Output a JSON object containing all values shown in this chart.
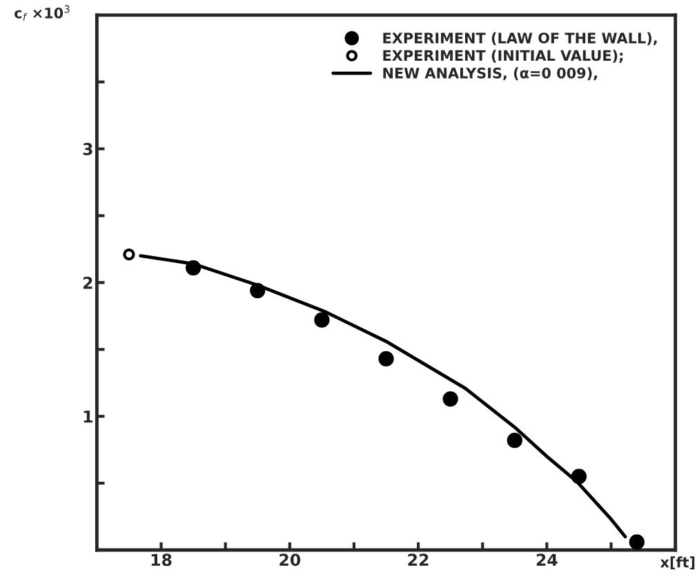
{
  "chart_data": {
    "type": "scatter",
    "xlabel": "x[ft]",
    "ylabel": "c$_{f}$ ×10$^{3}$",
    "xlim": [
      17,
      26
    ],
    "ylim": [
      0,
      4
    ],
    "xticks": [
      {
        "value": 18,
        "label": "18"
      },
      {
        "value": 19,
        "label": null
      },
      {
        "value": 20,
        "label": "20"
      },
      {
        "value": 21,
        "label": null
      },
      {
        "value": 22,
        "label": "22"
      },
      {
        "value": 23,
        "label": null
      },
      {
        "value": 24,
        "label": "24"
      },
      {
        "value": 25,
        "label": null
      }
    ],
    "yticks": [
      {
        "value": 0.5,
        "label": null
      },
      {
        "value": 1,
        "label": "1"
      },
      {
        "value": 1.5,
        "label": null
      },
      {
        "value": 2,
        "label": "2"
      },
      {
        "value": 2.5,
        "label": null
      },
      {
        "value": 3,
        "label": "3"
      },
      {
        "value": 3.5,
        "label": null
      }
    ],
    "legend": "top right",
    "grid": false,
    "series": [
      {
        "name": "EXPERIMENT (LAW OF THE WALL),",
        "marker": "circle",
        "color": "#000000",
        "x": [
          18.5,
          19.5,
          20.5,
          21.5,
          22.5,
          23.5,
          24.5,
          25.4
        ],
        "values": [
          2.11,
          1.94,
          1.72,
          1.43,
          1.13,
          0.82,
          0.55,
          0.06
        ]
      },
      {
        "name": "EXPERIMENT (INITIAL VALUE);",
        "marker": "circle",
        "color": "#ffffff",
        "x": [
          17.5
        ],
        "values": [
          2.21
        ]
      },
      {
        "name": "NEW ANALYSIS, (α=0 009),",
        "type": "line",
        "line_style": "solid",
        "color": "#000000",
        "x": [
          17.68,
          18.5,
          19.5,
          20.56,
          21.5,
          22.73,
          23.52,
          24.0,
          24.47,
          25.0,
          25.22
        ],
        "values": [
          2.2,
          2.14,
          1.98,
          1.78,
          1.56,
          1.21,
          0.91,
          0.7,
          0.51,
          0.23,
          0.1
        ]
      }
    ]
  }
}
